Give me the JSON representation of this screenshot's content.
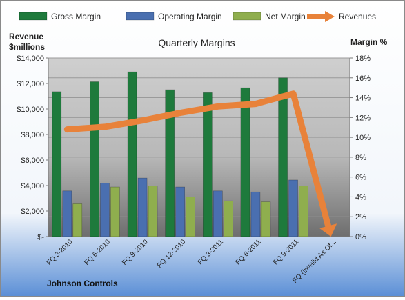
{
  "chart_data": {
    "type": "bar",
    "title": "Quarterly Margins",
    "footer_label": "Johnson Controls",
    "left_axis_title": [
      "Revenue",
      "$millions"
    ],
    "right_axis_title": "Margin %",
    "categories": [
      "FQ 3-2010",
      "FQ 6-2010",
      "FQ 9-2010",
      "FQ 12-2010",
      "FQ 3-2011",
      "FQ 6-2011",
      "FQ 9-2011",
      "FQ (Invalid As Of..."
    ],
    "left_axis": {
      "range": [
        0,
        14000
      ],
      "ticks": [
        "$-",
        "$2,000",
        "$4,000",
        "$6,000",
        "$8,000",
        "$10,000",
        "$12,000",
        "$14,000"
      ]
    },
    "right_axis": {
      "range": [
        0,
        18
      ],
      "ticks": [
        "0%",
        "2%",
        "4%",
        "6%",
        "8%",
        "10%",
        "12%",
        "14%",
        "16%",
        "18%"
      ]
    },
    "legend": {
      "position": "top"
    },
    "series": [
      {
        "name": "Gross Margin",
        "kind": "bar",
        "axis": "right",
        "color": "#1e7a3c",
        "values": [
          14.6,
          15.6,
          16.6,
          14.8,
          14.5,
          15.0,
          16.0,
          null
        ]
      },
      {
        "name": "Operating Margin",
        "kind": "bar",
        "axis": "right",
        "color": "#4a6fb0",
        "values": [
          4.6,
          5.4,
          5.9,
          5.0,
          4.6,
          4.5,
          5.7,
          null
        ]
      },
      {
        "name": "Net Margin",
        "kind": "bar",
        "axis": "right",
        "color": "#8fae4e",
        "values": [
          3.3,
          5.0,
          5.1,
          4.0,
          3.6,
          3.5,
          5.1,
          null
        ]
      },
      {
        "name": "Revenues",
        "kind": "line",
        "axis": "left",
        "color": "#e8823a",
        "values": [
          8400,
          8600,
          9100,
          9700,
          10200,
          10400,
          11200,
          0
        ]
      }
    ]
  }
}
